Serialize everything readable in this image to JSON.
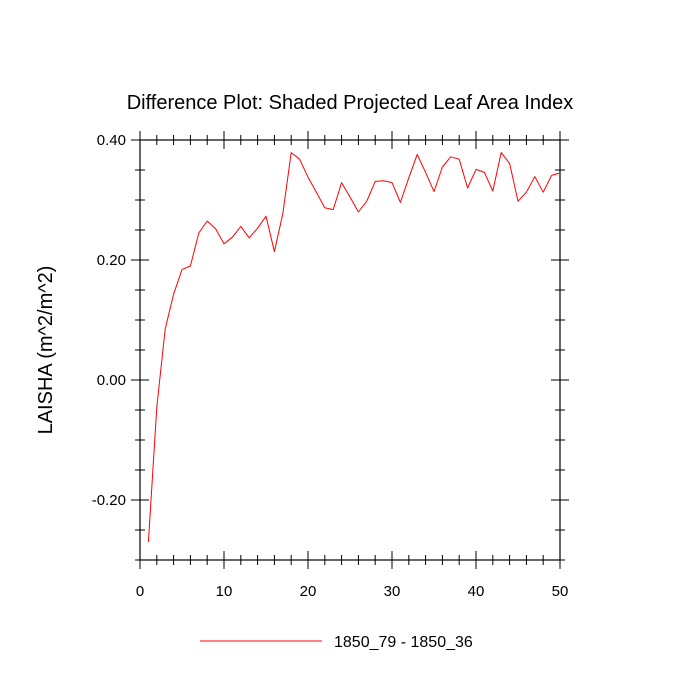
{
  "chart_data": {
    "type": "line",
    "title": "Difference Plot: Shaded Projected Leaf Area Index",
    "ylabel": "LAISHA  (m^2/m^2)",
    "xlabel": "",
    "xlim": [
      0,
      50
    ],
    "ylim": [
      -0.3,
      0.4
    ],
    "x_ticks": [
      0,
      10,
      20,
      30,
      40,
      50
    ],
    "x_tick_labels": [
      "0",
      "10",
      "20",
      "30",
      "40",
      "50"
    ],
    "y_ticks": [
      -0.2,
      0.0,
      0.2,
      0.4
    ],
    "y_tick_labels": [
      "-0.20",
      "0.00",
      "0.20",
      "0.40"
    ],
    "grid": false,
    "legend_position": "bottom",
    "series": [
      {
        "name": "1850_79 - 1850_36",
        "color": "#ff0000",
        "x": [
          1,
          2,
          3,
          4,
          5,
          6,
          7,
          8,
          9,
          10,
          11,
          12,
          13,
          14,
          15,
          16,
          17,
          18,
          19,
          20,
          21,
          22,
          23,
          24,
          25,
          26,
          27,
          28,
          29,
          30,
          31,
          32,
          33,
          34,
          35,
          36,
          37,
          38,
          39,
          40,
          41,
          42,
          43,
          44,
          45,
          46,
          47,
          48,
          49,
          50
        ],
        "values": [
          -0.27,
          -0.045,
          0.085,
          0.143,
          0.184,
          0.19,
          0.245,
          0.265,
          0.252,
          0.227,
          0.238,
          0.256,
          0.237,
          0.253,
          0.273,
          0.214,
          0.277,
          0.379,
          0.368,
          0.338,
          0.313,
          0.287,
          0.284,
          0.329,
          0.305,
          0.28,
          0.298,
          0.331,
          0.332,
          0.329,
          0.296,
          0.337,
          0.376,
          0.346,
          0.314,
          0.355,
          0.372,
          0.368,
          0.32,
          0.351,
          0.346,
          0.315,
          0.379,
          0.361,
          0.298,
          0.313,
          0.339,
          0.313,
          0.341,
          0.345
        ]
      }
    ]
  }
}
